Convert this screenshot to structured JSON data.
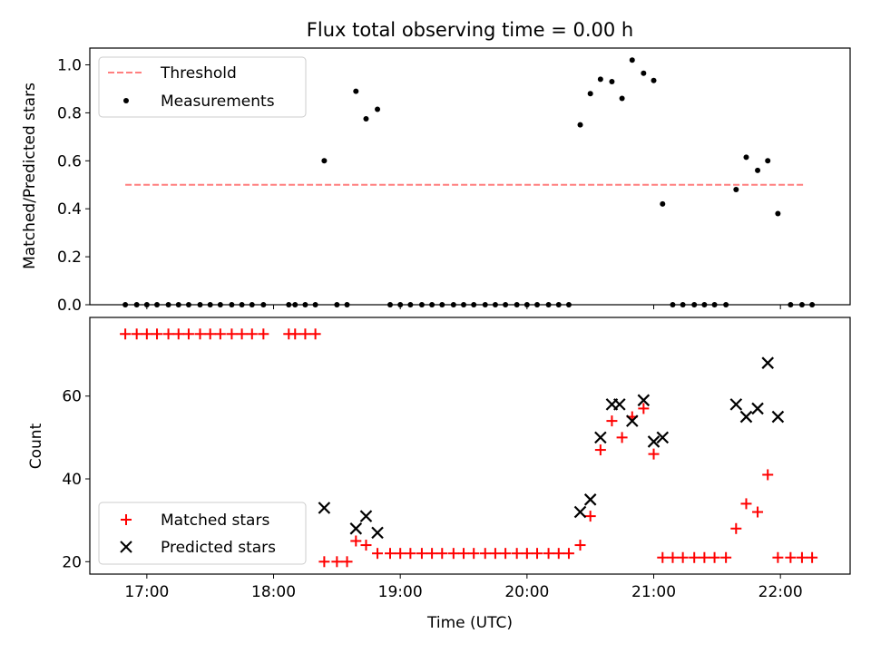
{
  "chart_data": [
    {
      "type": "scatter",
      "title": "Flux total observing time = 0.00 h",
      "xlabel": "",
      "ylabel": "Matched/Predicted stars",
      "xlim": [
        16.55,
        22.55
      ],
      "ylim": [
        0.0,
        1.07
      ],
      "yticks": [
        0.0,
        0.2,
        0.4,
        0.6,
        0.8,
        1.0
      ],
      "ytick_labels": [
        "0.0",
        "0.2",
        "0.4",
        "0.6",
        "0.8",
        "1.0"
      ],
      "legend": {
        "position": "top-left",
        "entries": [
          "Threshold",
          "Measurements"
        ]
      },
      "threshold": {
        "name": "Threshold",
        "value": 0.5,
        "x_range": [
          16.83,
          22.2
        ],
        "color": "#ff7f7f",
        "style": "dashed"
      },
      "series": [
        {
          "name": "Measurements",
          "color": "#000000",
          "marker": "dot",
          "x": [
            16.83,
            16.92,
            17.0,
            17.08,
            17.17,
            17.25,
            17.33,
            17.42,
            17.5,
            17.58,
            17.67,
            17.75,
            17.83,
            17.92,
            18.12,
            18.17,
            18.25,
            18.33,
            18.4,
            18.5,
            18.58,
            18.65,
            18.73,
            18.82,
            18.92,
            19.0,
            19.08,
            19.17,
            19.25,
            19.33,
            19.42,
            19.5,
            19.58,
            19.67,
            19.75,
            19.83,
            19.92,
            20.0,
            20.08,
            20.17,
            20.25,
            20.33,
            20.42,
            20.5,
            20.58,
            20.67,
            20.75,
            20.83,
            20.92,
            21.0,
            21.07,
            21.15,
            21.23,
            21.32,
            21.4,
            21.48,
            21.57,
            21.65,
            21.73,
            21.82,
            21.9,
            21.98,
            22.08,
            22.17,
            22.25
          ],
          "y": [
            0,
            0,
            0,
            0,
            0,
            0,
            0,
            0,
            0,
            0,
            0,
            0,
            0,
            0,
            0,
            0,
            0,
            0,
            0.6,
            0,
            0,
            0.89,
            0.775,
            0.815,
            0,
            0,
            0,
            0,
            0,
            0,
            0,
            0,
            0,
            0,
            0,
            0,
            0,
            0,
            0,
            0,
            0,
            0,
            0.75,
            0.88,
            0.94,
            0.93,
            0.86,
            1.02,
            0.965,
            0.935,
            0.42,
            0,
            0,
            0,
            0,
            0,
            0,
            0.48,
            0.615,
            0.56,
            0.6,
            0.38,
            0,
            0,
            0
          ]
        }
      ]
    },
    {
      "type": "scatter",
      "title": "",
      "xlabel": "Time (UTC)",
      "ylabel": "Count",
      "xlim": [
        16.55,
        22.55
      ],
      "ylim": [
        17,
        79
      ],
      "yticks": [
        20,
        40,
        60
      ],
      "ytick_labels": [
        "20",
        "40",
        "60"
      ],
      "xticks": [
        17,
        18,
        19,
        20,
        21,
        22
      ],
      "xtick_labels": [
        "17:00",
        "18:00",
        "19:00",
        "20:00",
        "21:00",
        "22:00"
      ],
      "legend": {
        "position": "bottom-left",
        "entries": [
          "Matched stars",
          "Predicted stars"
        ]
      },
      "series": [
        {
          "name": "Matched stars",
          "color": "#ff0000",
          "marker": "plus",
          "x": [
            16.83,
            16.92,
            17.0,
            17.08,
            17.17,
            17.25,
            17.33,
            17.42,
            17.5,
            17.58,
            17.67,
            17.75,
            17.83,
            17.92,
            18.12,
            18.17,
            18.25,
            18.33,
            18.4,
            18.5,
            18.58,
            18.65,
            18.73,
            18.82,
            18.92,
            19.0,
            19.08,
            19.17,
            19.25,
            19.33,
            19.42,
            19.5,
            19.58,
            19.67,
            19.75,
            19.83,
            19.92,
            20.0,
            20.08,
            20.17,
            20.25,
            20.33,
            20.42,
            20.5,
            20.58,
            20.67,
            20.75,
            20.83,
            20.92,
            21.0,
            21.07,
            21.15,
            21.23,
            21.32,
            21.4,
            21.48,
            21.57,
            21.65,
            21.73,
            21.82,
            21.9,
            21.98,
            22.08,
            22.17,
            22.25
          ],
          "y": [
            75,
            75,
            75,
            75,
            75,
            75,
            75,
            75,
            75,
            75,
            75,
            75,
            75,
            75,
            75,
            75,
            75,
            75,
            20,
            20,
            20,
            25,
            24,
            22,
            22,
            22,
            22,
            22,
            22,
            22,
            22,
            22,
            22,
            22,
            22,
            22,
            22,
            22,
            22,
            22,
            22,
            22,
            24,
            31,
            47,
            54,
            50,
            55,
            57,
            46,
            21,
            21,
            21,
            21,
            21,
            21,
            21,
            28,
            34,
            32,
            41,
            21,
            21,
            21,
            21
          ]
        },
        {
          "name": "Predicted stars",
          "color": "#000000",
          "marker": "x",
          "x": [
            18.4,
            18.65,
            18.73,
            18.82,
            20.42,
            20.5,
            20.58,
            20.67,
            20.73,
            20.83,
            20.92,
            21.0,
            21.07,
            21.65,
            21.73,
            21.82,
            21.9,
            21.98
          ],
          "y": [
            33,
            28,
            31,
            27,
            32,
            35,
            50,
            58,
            58,
            54,
            59,
            49,
            50,
            58,
            55,
            57,
            68,
            55
          ]
        }
      ]
    }
  ]
}
